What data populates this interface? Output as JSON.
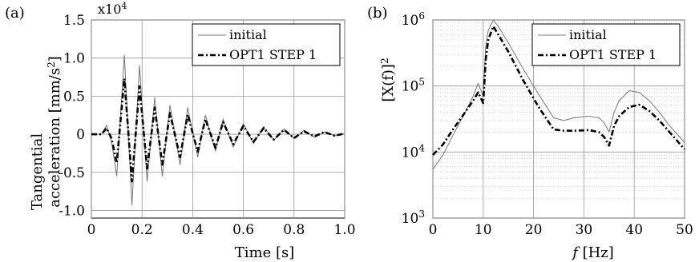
{
  "chart_data": [
    {
      "panel": "(a)",
      "type": "line",
      "exponent_label": "x10",
      "exponent_power": "4",
      "xlabel": "Time  [s]",
      "ylabel_line1": "Tangential",
      "ylabel_line2": "acceleration  [mm/s",
      "ylabel_sup": "2",
      "ylabel_end": "]",
      "xlim": [
        0,
        1.0
      ],
      "ylim": [
        -1.1,
        1.5
      ],
      "xticks": [
        "0",
        "0.2",
        "0.4",
        "0.6",
        "0.8",
        "1.0"
      ],
      "yticks": [
        "1.5",
        "1.0",
        "0.5",
        "0",
        "-0.5",
        "-1.0"
      ],
      "ytick_values": [
        1.5,
        1.0,
        0.5,
        0,
        -0.5,
        -1.0
      ],
      "xtick_values": [
        0,
        0.2,
        0.4,
        0.6,
        0.8,
        1.0
      ],
      "grid": true,
      "legend_position": "top-right",
      "series": [
        {
          "name": "initial",
          "style": "solid-thin",
          "x": [
            0,
            0.04,
            0.06,
            0.08,
            0.1,
            0.13,
            0.16,
            0.19,
            0.22,
            0.25,
            0.28,
            0.31,
            0.35,
            0.38,
            0.42,
            0.45,
            0.49,
            0.52,
            0.56,
            0.6,
            0.64,
            0.68,
            0.72,
            0.76,
            0.8,
            0.84,
            0.88,
            0.92,
            0.96,
            1.0
          ],
          "y": [
            0,
            0,
            0.12,
            -0.1,
            -0.55,
            1.04,
            -0.93,
            0.9,
            -0.62,
            0.48,
            -0.55,
            0.38,
            -0.4,
            0.35,
            -0.3,
            0.25,
            -0.22,
            0.2,
            -0.17,
            0.14,
            -0.12,
            0.1,
            -0.08,
            0.07,
            -0.06,
            0.05,
            -0.04,
            0.03,
            -0.02,
            0.01
          ]
        },
        {
          "name": "OPT1 STEP 1",
          "style": "dash-dot-thick",
          "x": [
            0,
            0.04,
            0.06,
            0.08,
            0.1,
            0.13,
            0.16,
            0.19,
            0.22,
            0.25,
            0.28,
            0.31,
            0.35,
            0.38,
            0.42,
            0.45,
            0.49,
            0.52,
            0.56,
            0.6,
            0.64,
            0.68,
            0.72,
            0.76,
            0.8,
            0.84,
            0.88,
            0.92,
            0.96,
            1.0
          ],
          "y": [
            0,
            0,
            0.08,
            -0.06,
            -0.38,
            0.73,
            -0.62,
            0.63,
            -0.45,
            0.35,
            -0.4,
            0.28,
            -0.3,
            0.26,
            -0.23,
            0.2,
            -0.18,
            0.16,
            -0.13,
            0.11,
            -0.1,
            0.08,
            -0.07,
            0.06,
            -0.05,
            0.04,
            -0.03,
            0.03,
            -0.02,
            0.01
          ]
        }
      ]
    },
    {
      "panel": "(b)",
      "type": "line",
      "ylabel": "[X(f)]",
      "ylabel_sup": "2",
      "xlabel_italic": "f",
      "xlabel_rest": "  [Hz]",
      "xlim": [
        0,
        50
      ],
      "ylim": [
        1000,
        1000000
      ],
      "yscale": "log",
      "xticks": [
        "0",
        "10",
        "20",
        "30",
        "40",
        "50"
      ],
      "xtick_values": [
        0,
        10,
        20,
        30,
        40,
        50
      ],
      "yticks": [
        {
          "base": "10",
          "power": "6",
          "value": 1000000
        },
        {
          "base": "10",
          "power": "5",
          "value": 100000
        },
        {
          "base": "10",
          "power": "4",
          "value": 10000
        },
        {
          "base": "10",
          "power": "3",
          "value": 1000
        }
      ],
      "grid": true,
      "legend_position": "top-right",
      "series": [
        {
          "name": "initial",
          "style": "solid-thin",
          "x": [
            0,
            2,
            4,
            6,
            8,
            9,
            10,
            10.5,
            11,
            12,
            13,
            15,
            18,
            21,
            24,
            26,
            28,
            31,
            33,
            34,
            35,
            36,
            37,
            39,
            41,
            43,
            45,
            47,
            50
          ],
          "y": [
            5500,
            9000,
            18000,
            35000,
            70000,
            110000,
            70000,
            400000,
            700000,
            1000000,
            800000,
            450000,
            180000,
            75000,
            33000,
            30000,
            33000,
            35000,
            33000,
            28000,
            20000,
            40000,
            60000,
            85000,
            80000,
            60000,
            40000,
            25000,
            14000
          ]
        },
        {
          "name": "OPT1 STEP 1",
          "style": "dash-dot-thick",
          "x": [
            0,
            2,
            4,
            6,
            8,
            9,
            10,
            10.5,
            11,
            12,
            13,
            15,
            18,
            21,
            24,
            26,
            28,
            31,
            33,
            34,
            35,
            36,
            37,
            39,
            41,
            43,
            45,
            47,
            50
          ],
          "y": [
            9000,
            13000,
            22000,
            36000,
            60000,
            80000,
            55000,
            250000,
            500000,
            800000,
            600000,
            330000,
            120000,
            48000,
            22000,
            21000,
            21000,
            21500,
            20000,
            17000,
            12500,
            25000,
            35000,
            48000,
            52000,
            42000,
            30000,
            20000,
            11000
          ]
        }
      ]
    }
  ]
}
